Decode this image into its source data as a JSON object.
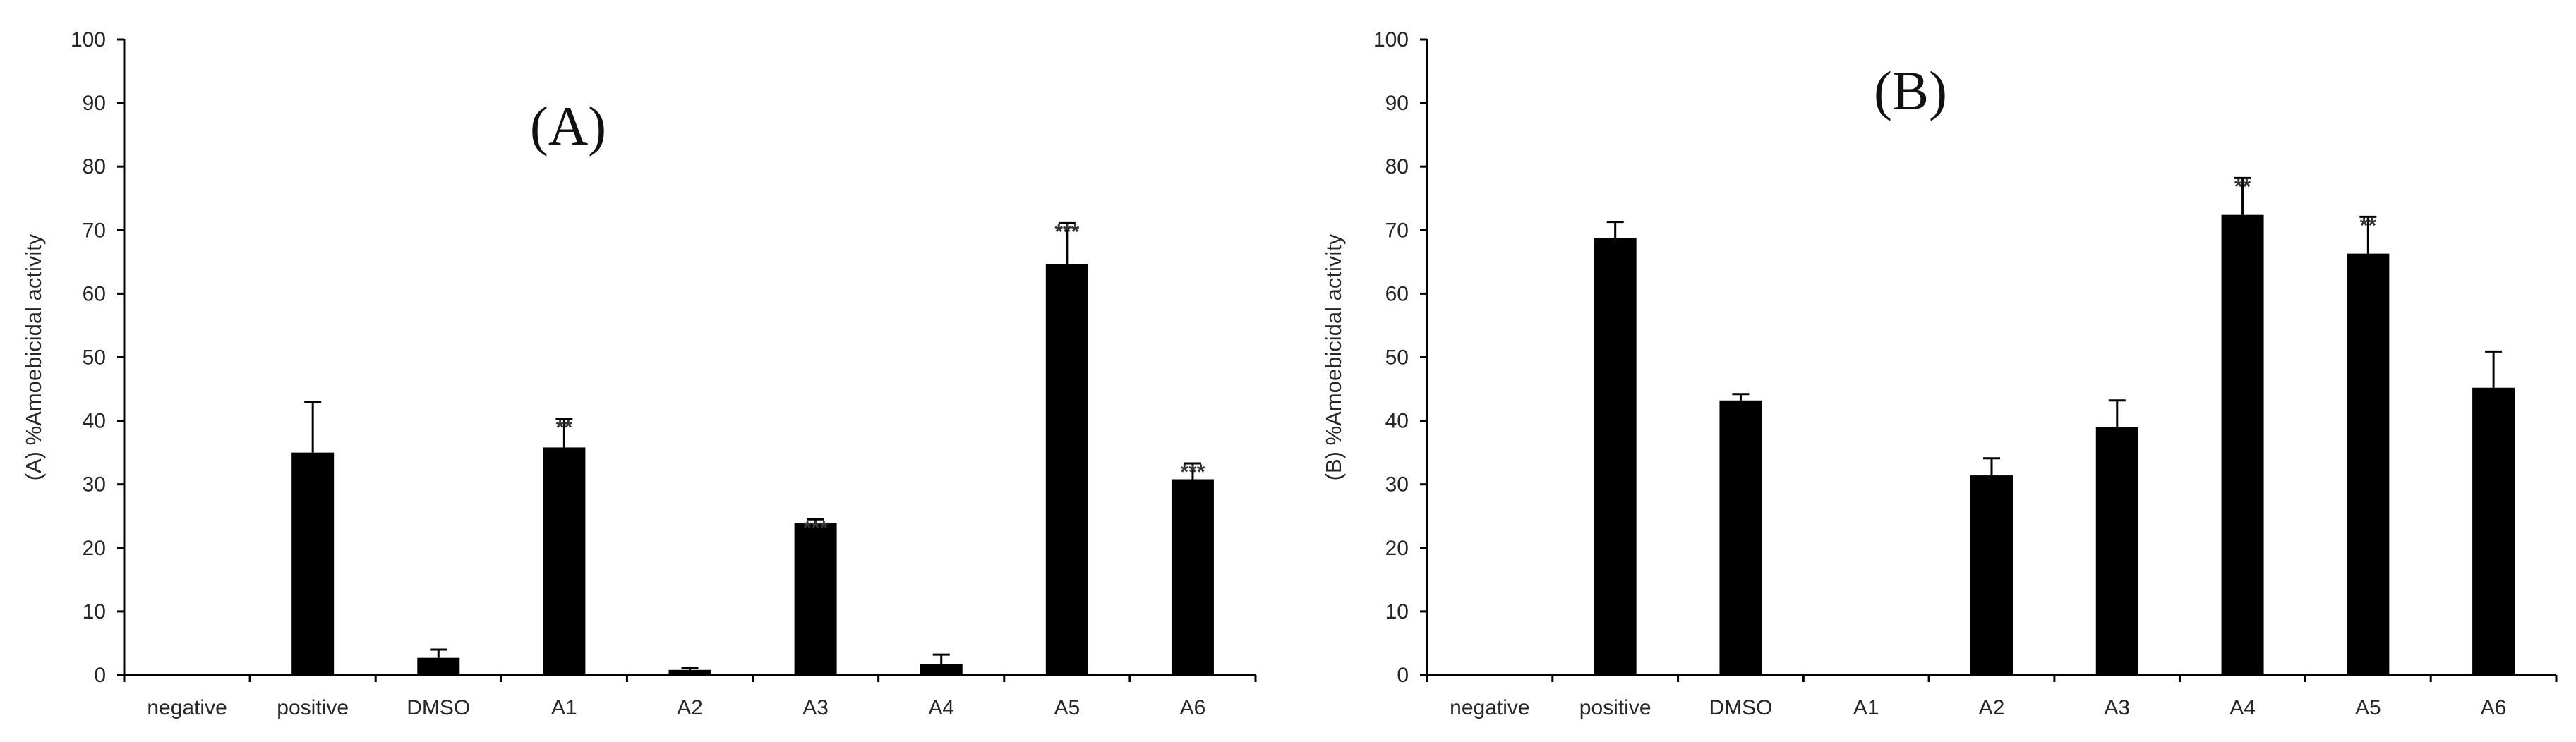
{
  "chart_data": [
    {
      "type": "bar",
      "panel": "A",
      "title": "(A)",
      "ylabel": "(A) %Amoebicidal activity",
      "xlabel": "",
      "ylim": [
        0,
        100
      ],
      "yticks": [
        0,
        10,
        20,
        30,
        40,
        50,
        60,
        70,
        80,
        90,
        100
      ],
      "categories": [
        "negative",
        "positive",
        "DMSO",
        "A1",
        "A2",
        "A3",
        "A4",
        "A5",
        "A6"
      ],
      "values": [
        0,
        35,
        2.7,
        35.8,
        0.8,
        23.9,
        1.7,
        64.6,
        30.8
      ],
      "errors": [
        0,
        8,
        1.3,
        4.5,
        0.3,
        0.6,
        1.5,
        6.5,
        2.5
      ],
      "significance": [
        "",
        "",
        "",
        "**",
        "",
        "***",
        "",
        "***",
        "***"
      ],
      "bar_color": "#000000"
    },
    {
      "type": "bar",
      "panel": "B",
      "title": "(B)",
      "ylabel": "(B) %Amoebicidal activity",
      "xlabel": "",
      "ylim": [
        0,
        100
      ],
      "yticks": [
        0,
        10,
        20,
        30,
        40,
        50,
        60,
        70,
        80,
        90,
        100
      ],
      "categories": [
        "negative",
        "positive",
        "DMSO",
        "A1",
        "A2",
        "A3",
        "A4",
        "A5",
        "A6"
      ],
      "values": [
        0,
        68.8,
        43.2,
        0,
        31.4,
        39,
        72.4,
        66.3,
        45.2
      ],
      "errors": [
        0,
        2.5,
        1,
        0,
        2.7,
        4.2,
        5.8,
        5.8,
        5.7
      ],
      "significance": [
        "",
        "",
        "",
        "",
        "",
        "",
        "**",
        "**",
        ""
      ],
      "bar_color": "#000000"
    }
  ]
}
